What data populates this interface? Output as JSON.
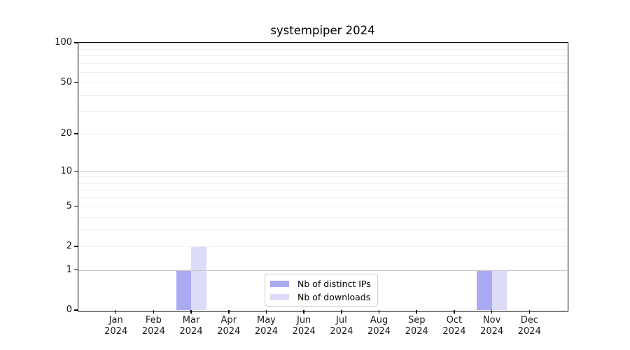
{
  "chart_data": {
    "type": "bar",
    "title": "systempiper 2024",
    "categories": [
      "Jan",
      "Feb",
      "Mar",
      "Apr",
      "May",
      "Jun",
      "Jul",
      "Aug",
      "Sep",
      "Oct",
      "Nov",
      "Dec"
    ],
    "category_year": "2024",
    "series": [
      {
        "name": "Nb of distinct IPs",
        "color": "#aaaaf2",
        "values": [
          0,
          0,
          1,
          0,
          0,
          0,
          0,
          0,
          0,
          0,
          1,
          0
        ]
      },
      {
        "name": "Nb of downloads",
        "color": "#dcdcf8",
        "values": [
          0,
          0,
          2,
          0,
          0,
          0,
          0,
          0,
          0,
          0,
          1,
          0
        ]
      }
    ],
    "xlabel": "",
    "ylabel": "",
    "yscale": "log1p",
    "ylim": [
      0,
      100
    ],
    "y_tick_values": [
      0,
      1,
      2,
      5,
      10,
      20,
      50,
      100
    ],
    "y_major_gridlines": [
      1,
      10,
      100
    ],
    "y_minor_gridlines": [
      2,
      3,
      4,
      5,
      6,
      7,
      8,
      9,
      20,
      30,
      40,
      50,
      60,
      70,
      80,
      90
    ],
    "grid": true,
    "legend_position": "lower center",
    "colors": {
      "major_grid": "#c8c8c8",
      "minor_grid": "#ededed",
      "axis": "#000000",
      "text": "#1a1a1a"
    }
  }
}
